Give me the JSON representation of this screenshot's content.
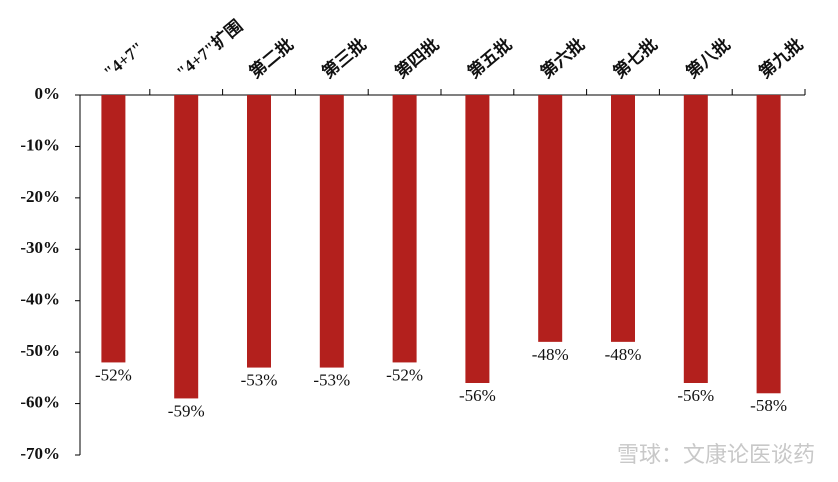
{
  "chart_data": {
    "type": "bar",
    "categories": [
      "\"4+7\"",
      "\"4+7\"扩围",
      "第二批",
      "第三批",
      "第四批",
      "第五批",
      "第六批",
      "第七批",
      "第八批",
      "第九批"
    ],
    "values": [
      -52,
      -59,
      -53,
      -53,
      -52,
      -56,
      -48,
      -48,
      -56,
      -58
    ],
    "value_labels": [
      "-52%",
      "-59%",
      "-53%",
      "-53%",
      "-52%",
      "-56%",
      "-48%",
      "-48%",
      "-56%",
      "-58%"
    ],
    "color": "#b3201d",
    "ylim": [
      -70,
      0
    ],
    "yticks": [
      {
        "value": 0,
        "label": "0%"
      },
      {
        "value": -10,
        "label": "-10%"
      },
      {
        "value": -20,
        "label": "-20%"
      },
      {
        "value": -30,
        "label": "-30%"
      },
      {
        "value": -40,
        "label": "-40%"
      },
      {
        "value": -50,
        "label": "-50%"
      },
      {
        "value": -60,
        "label": "-60%"
      },
      {
        "value": -70,
        "label": "-70%"
      }
    ],
    "grid": false,
    "watermark": "雪球：文康论医谈药"
  }
}
